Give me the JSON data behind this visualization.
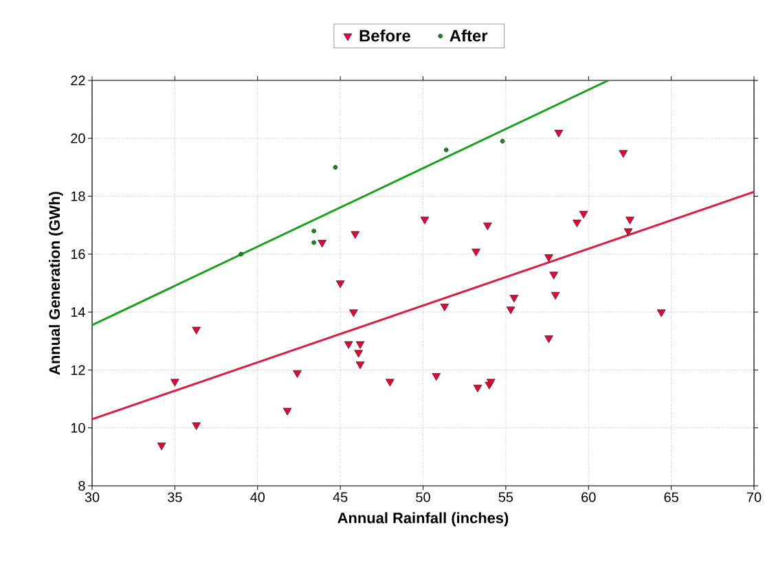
{
  "chart_data": {
    "type": "scatter",
    "xlabel": "Annual Rainfall (inches)",
    "ylabel": "Annual Generation (GWh)",
    "xlim": [
      30,
      70
    ],
    "xticks": [
      30,
      35,
      40,
      45,
      50,
      55,
      60,
      65,
      70
    ],
    "ylim": [
      8,
      22
    ],
    "yticks": [
      8,
      10,
      12,
      14,
      16,
      18,
      20,
      22
    ],
    "grid": true,
    "legend": "top",
    "series": [
      {
        "name": "Before",
        "marker": "triangle",
        "color": "#dc0a3c",
        "x": [
          34.2,
          35.0,
          36.3,
          36.3,
          41.8,
          42.4,
          43.9,
          45.0,
          45.5,
          45.8,
          45.9,
          46.1,
          46.2,
          46.2,
          48.0,
          50.1,
          50.8,
          51.3,
          53.2,
          53.3,
          53.9,
          54.0,
          54.1,
          55.3,
          55.5,
          57.6,
          57.6,
          57.9,
          58.0,
          58.2,
          59.3,
          59.7,
          62.1,
          62.4,
          62.5,
          64.4
        ],
        "values": [
          9.4,
          11.6,
          13.4,
          10.1,
          10.6,
          11.9,
          16.4,
          15.0,
          12.9,
          14.0,
          16.7,
          12.6,
          12.9,
          12.2,
          11.6,
          17.2,
          11.8,
          14.2,
          16.1,
          11.4,
          17.0,
          11.5,
          11.6,
          14.1,
          14.5,
          15.9,
          13.1,
          15.3,
          14.6,
          20.2,
          17.1,
          17.4,
          19.5,
          16.8,
          17.2,
          14.0
        ]
      },
      {
        "name": "After",
        "marker": "circle",
        "color": "#1a8a1a",
        "x": [
          39.0,
          43.4,
          43.4,
          44.7,
          51.4,
          54.8
        ],
        "values": [
          16.0,
          16.8,
          16.4,
          19.0,
          19.6,
          19.9
        ]
      },
      {
        "type": "line",
        "color": "#1aa01a",
        "x": [
          30,
          61.2
        ],
        "values": [
          13.55,
          22
        ]
      },
      {
        "type": "line",
        "color": "#dc1e46",
        "x": [
          30,
          70
        ],
        "values": [
          10.3,
          18.15
        ]
      }
    ]
  }
}
